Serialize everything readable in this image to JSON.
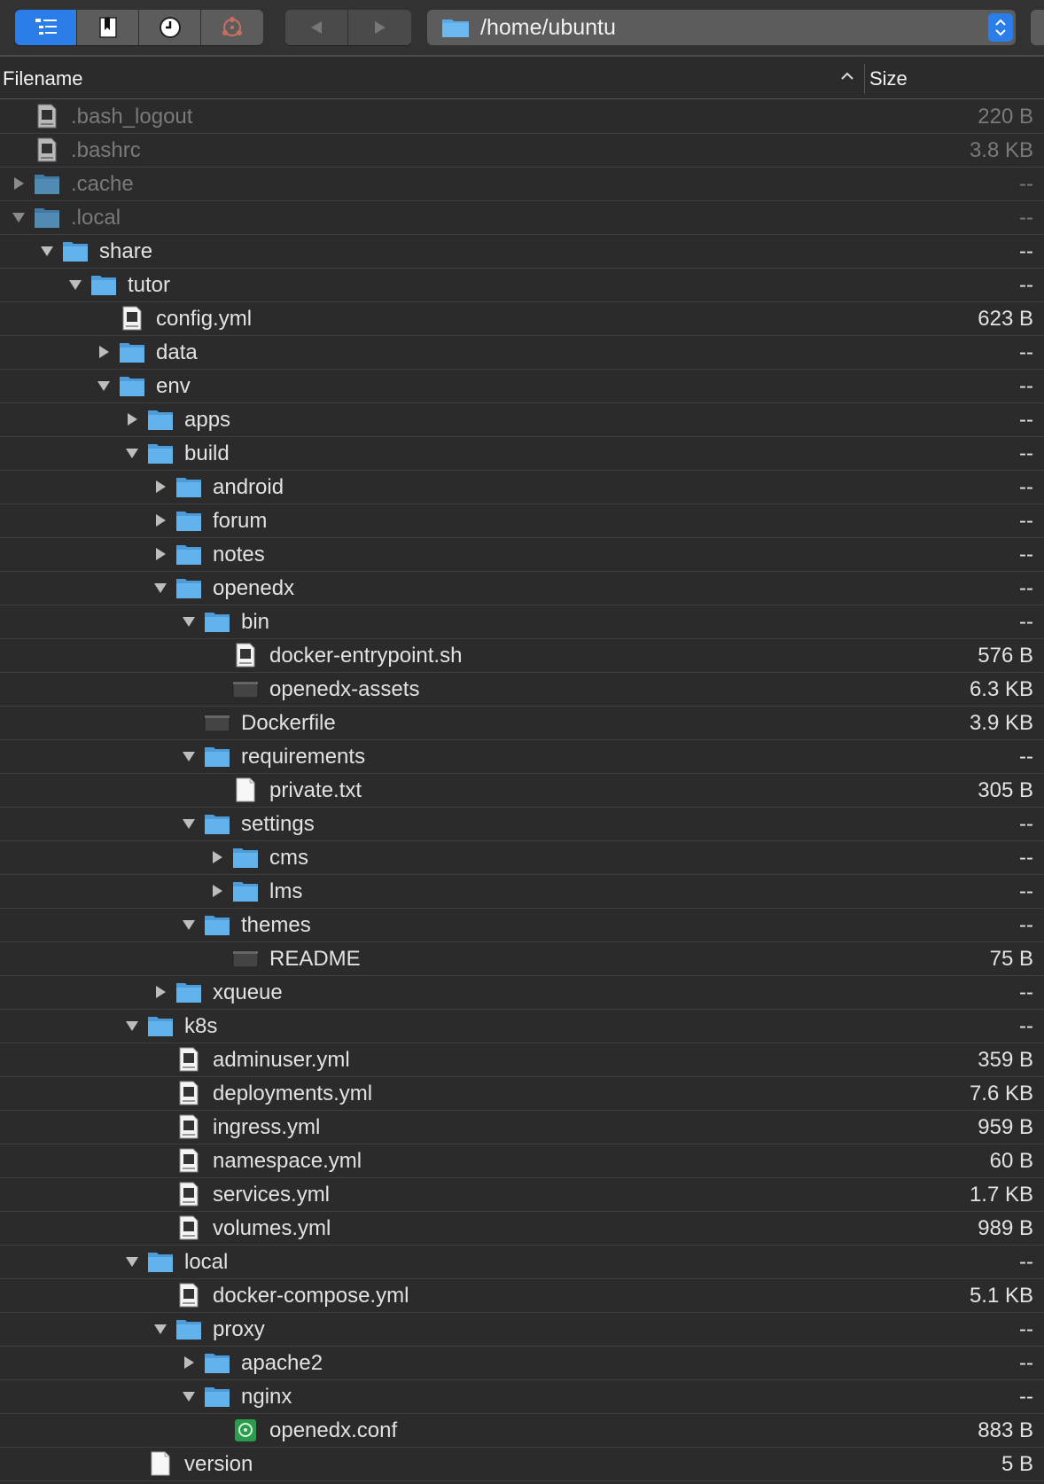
{
  "toolbar": {
    "views": [
      "outline-view",
      "bookmarks",
      "history",
      "sftp-connection"
    ],
    "path": "/home/ubuntu"
  },
  "columns": {
    "filename": "Filename",
    "size": "Size"
  },
  "rows": [
    {
      "name": ".bash_logout",
      "size": "220 B",
      "depth": 0,
      "kind": "shell",
      "hidden": true
    },
    {
      "name": ".bashrc",
      "size": "3.8 KB",
      "depth": 0,
      "kind": "shell",
      "hidden": true
    },
    {
      "name": ".cache",
      "size": "--",
      "depth": 0,
      "kind": "folder",
      "toggle": "closed",
      "hidden": true
    },
    {
      "name": ".local",
      "size": "--",
      "depth": 0,
      "kind": "folder",
      "toggle": "open",
      "hidden": true
    },
    {
      "name": "share",
      "size": "--",
      "depth": 1,
      "kind": "folder",
      "toggle": "open"
    },
    {
      "name": "tutor",
      "size": "--",
      "depth": 2,
      "kind": "folder",
      "toggle": "open"
    },
    {
      "name": "config.yml",
      "size": "623 B",
      "depth": 3,
      "kind": "yaml"
    },
    {
      "name": "data",
      "size": "--",
      "depth": 3,
      "kind": "folder",
      "toggle": "closed"
    },
    {
      "name": "env",
      "size": "--",
      "depth": 3,
      "kind": "folder",
      "toggle": "open"
    },
    {
      "name": "apps",
      "size": "--",
      "depth": 4,
      "kind": "folder",
      "toggle": "closed"
    },
    {
      "name": "build",
      "size": "--",
      "depth": 4,
      "kind": "folder",
      "toggle": "open"
    },
    {
      "name": "android",
      "size": "--",
      "depth": 5,
      "kind": "folder",
      "toggle": "closed"
    },
    {
      "name": "forum",
      "size": "--",
      "depth": 5,
      "kind": "folder",
      "toggle": "closed"
    },
    {
      "name": "notes",
      "size": "--",
      "depth": 5,
      "kind": "folder",
      "toggle": "closed"
    },
    {
      "name": "openedx",
      "size": "--",
      "depth": 5,
      "kind": "folder",
      "toggle": "open"
    },
    {
      "name": "bin",
      "size": "--",
      "depth": 6,
      "kind": "folder",
      "toggle": "open"
    },
    {
      "name": "docker-entrypoint.sh",
      "size": "576 B",
      "depth": 7,
      "kind": "shell"
    },
    {
      "name": "openedx-assets",
      "size": "6.3 KB",
      "depth": 7,
      "kind": "exec"
    },
    {
      "name": "Dockerfile",
      "size": "3.9 KB",
      "depth": 6,
      "kind": "exec"
    },
    {
      "name": "requirements",
      "size": "--",
      "depth": 6,
      "kind": "folder",
      "toggle": "open"
    },
    {
      "name": "private.txt",
      "size": "305 B",
      "depth": 7,
      "kind": "doc"
    },
    {
      "name": "settings",
      "size": "--",
      "depth": 6,
      "kind": "folder",
      "toggle": "open"
    },
    {
      "name": "cms",
      "size": "--",
      "depth": 7,
      "kind": "folder",
      "toggle": "closed"
    },
    {
      "name": "lms",
      "size": "--",
      "depth": 7,
      "kind": "folder",
      "toggle": "closed"
    },
    {
      "name": "themes",
      "size": "--",
      "depth": 6,
      "kind": "folder",
      "toggle": "open"
    },
    {
      "name": "README",
      "size": "75 B",
      "depth": 7,
      "kind": "exec"
    },
    {
      "name": "xqueue",
      "size": "--",
      "depth": 5,
      "kind": "folder",
      "toggle": "closed"
    },
    {
      "name": "k8s",
      "size": "--",
      "depth": 4,
      "kind": "folder",
      "toggle": "open"
    },
    {
      "name": "adminuser.yml",
      "size": "359 B",
      "depth": 5,
      "kind": "yaml"
    },
    {
      "name": "deployments.yml",
      "size": "7.6 KB",
      "depth": 5,
      "kind": "yaml"
    },
    {
      "name": "ingress.yml",
      "size": "959 B",
      "depth": 5,
      "kind": "yaml"
    },
    {
      "name": "namespace.yml",
      "size": "60 B",
      "depth": 5,
      "kind": "yaml"
    },
    {
      "name": "services.yml",
      "size": "1.7 KB",
      "depth": 5,
      "kind": "yaml"
    },
    {
      "name": "volumes.yml",
      "size": "989 B",
      "depth": 5,
      "kind": "yaml"
    },
    {
      "name": "local",
      "size": "--",
      "depth": 4,
      "kind": "folder",
      "toggle": "open"
    },
    {
      "name": "docker-compose.yml",
      "size": "5.1 KB",
      "depth": 5,
      "kind": "yaml"
    },
    {
      "name": "proxy",
      "size": "--",
      "depth": 5,
      "kind": "folder",
      "toggle": "open"
    },
    {
      "name": "apache2",
      "size": "--",
      "depth": 6,
      "kind": "folder",
      "toggle": "closed"
    },
    {
      "name": "nginx",
      "size": "--",
      "depth": 6,
      "kind": "folder",
      "toggle": "open"
    },
    {
      "name": "openedx.conf",
      "size": "883 B",
      "depth": 7,
      "kind": "conf"
    },
    {
      "name": "version",
      "size": "5 B",
      "depth": 4,
      "kind": "doc"
    }
  ]
}
